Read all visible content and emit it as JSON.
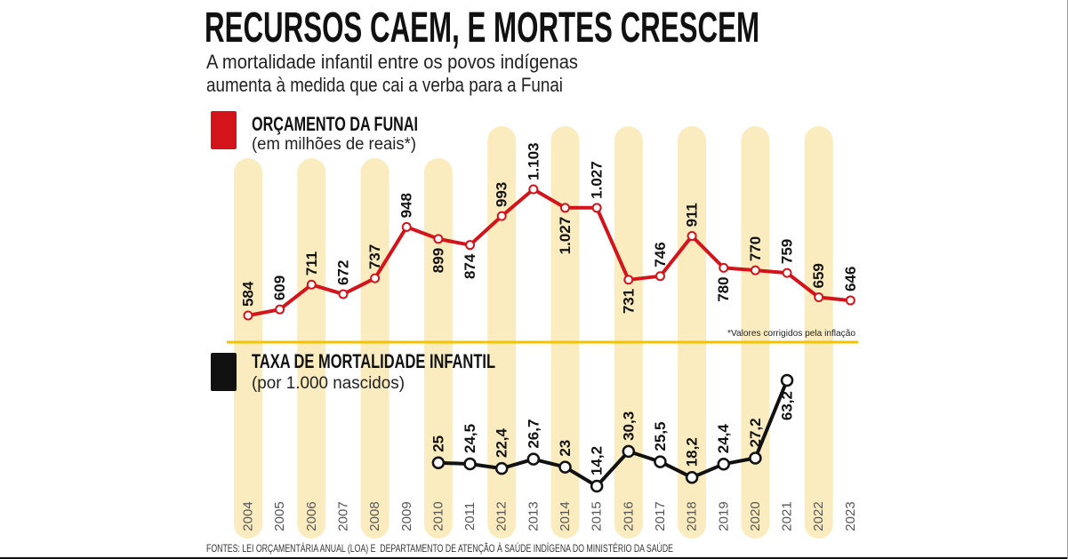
{
  "title": "RECURSOS CAEM, E MORTES CRESCEM",
  "subtitle": [
    "A mortalidade infantil entre os povos indígenas",
    "aumenta à medida que cai a verba para a Funai"
  ],
  "colors": {
    "budget_line": "#d3141b",
    "mortality_line": "#111111",
    "year_band": "#fbecc0",
    "divider": "#f2c300",
    "marker_fill": "#ffffff"
  },
  "chart_data": [
    {
      "type": "line",
      "subtitle": "(em milhões de reais*)",
      "note": "*Valores corrigidos pela inflação",
      "x": [
        "2004",
        "2005",
        "2006",
        "2007",
        "2008",
        "2009",
        "2010",
        "2011",
        "2012",
        "2013",
        "2014",
        "2015",
        "2016",
        "2017",
        "2018",
        "2019",
        "2020",
        "2021",
        "2022",
        "2023"
      ],
      "series": [
        {
          "name": "ORÇAMENTO DA FUNAI",
          "values": [
            584,
            609,
            711,
            672,
            737,
            948,
            899,
            874,
            993,
            1103,
            1027,
            1027,
            731,
            746,
            911,
            780,
            770,
            759,
            659,
            646
          ],
          "labels": [
            "584",
            "609",
            "711",
            "672",
            "737",
            "948",
            "899",
            "874",
            "993",
            "1.103",
            "1.027",
            "1.027",
            "731",
            "746",
            "911",
            "780",
            "770",
            "759",
            "659",
            "646"
          ]
        }
      ]
    },
    {
      "type": "line",
      "subtitle": "(por 1.000 nascidos)",
      "x": [
        2010,
        2011,
        2012,
        2013,
        2014,
        2015,
        2016,
        2017,
        2018,
        2019,
        2020,
        2021
      ],
      "series": [
        {
          "name": "TAXA DE MORTALIDADE INFANTIL",
          "values": [
            25,
            24.5,
            22.4,
            26.7,
            23,
            14.2,
            30.3,
            25.5,
            18.2,
            24.4,
            27.2,
            63.2
          ],
          "labels": [
            "25",
            "24,5",
            "22,4",
            "26,7",
            "23",
            "14,2",
            "30,3",
            "25,5",
            "18,2",
            "24,4",
            "27,2",
            "63,2"
          ]
        }
      ]
    }
  ],
  "source": "FONTES: LEI ORÇAMENTÁRIA ANUAL (LOA) E  DEPARTAMENTO DE ATENÇÃO À SAÚDE INDÍGENA DO MINISTÉRIO DA SAÚDE"
}
